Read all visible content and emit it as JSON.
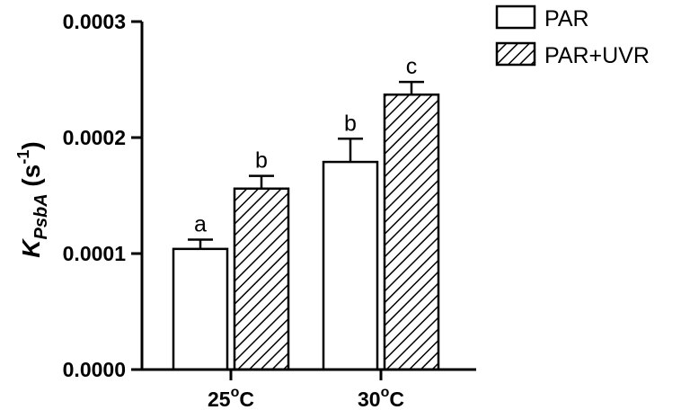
{
  "chart_data": {
    "type": "bar",
    "categories": [
      "25°C",
      "30°C"
    ],
    "category_labels": [
      {
        "base": "25",
        "sup": "o",
        "unit": "C"
      },
      {
        "base": "30",
        "sup": "o",
        "unit": "C"
      }
    ],
    "series": [
      {
        "name": "PAR",
        "values": [
          0.000104,
          0.000179
        ],
        "errors": [
          8e-06,
          2e-05
        ],
        "letters": [
          "a",
          "b"
        ],
        "pattern": "none"
      },
      {
        "name": "PAR+UVR",
        "values": [
          0.000156,
          0.000237
        ],
        "errors": [
          1.1e-05,
          1.1e-05
        ],
        "letters": [
          "b",
          "c"
        ],
        "pattern": "hatch"
      }
    ],
    "ylabel": {
      "main": "K",
      "sub": "PsbA",
      "unit_open": " (s",
      "unit_sup": "-1",
      "unit_close": ")"
    },
    "ylim": [
      0,
      0.0003
    ],
    "yticks": [
      0,
      0.0001,
      0.0002,
      0.0003
    ],
    "ytick_labels": [
      "0.0000",
      "0.0001",
      "0.0002",
      "0.0003"
    ],
    "grid": false,
    "legend": "top-right",
    "colors": {
      "bar_fill": "#ffffff",
      "stroke": "#000000"
    }
  }
}
